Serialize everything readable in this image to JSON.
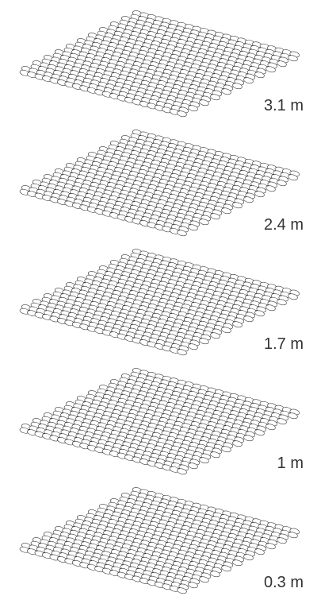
{
  "layers": [
    {
      "label": "3.1 m"
    },
    {
      "label": "2.4 m"
    },
    {
      "label": "1.7 m"
    },
    {
      "label": "1 m"
    },
    {
      "label": "0.3 m"
    }
  ],
  "mesh": {
    "stroke_color": "#3a3a3a",
    "fill_color": "#ffffff",
    "cell_shape": "ellipse"
  }
}
